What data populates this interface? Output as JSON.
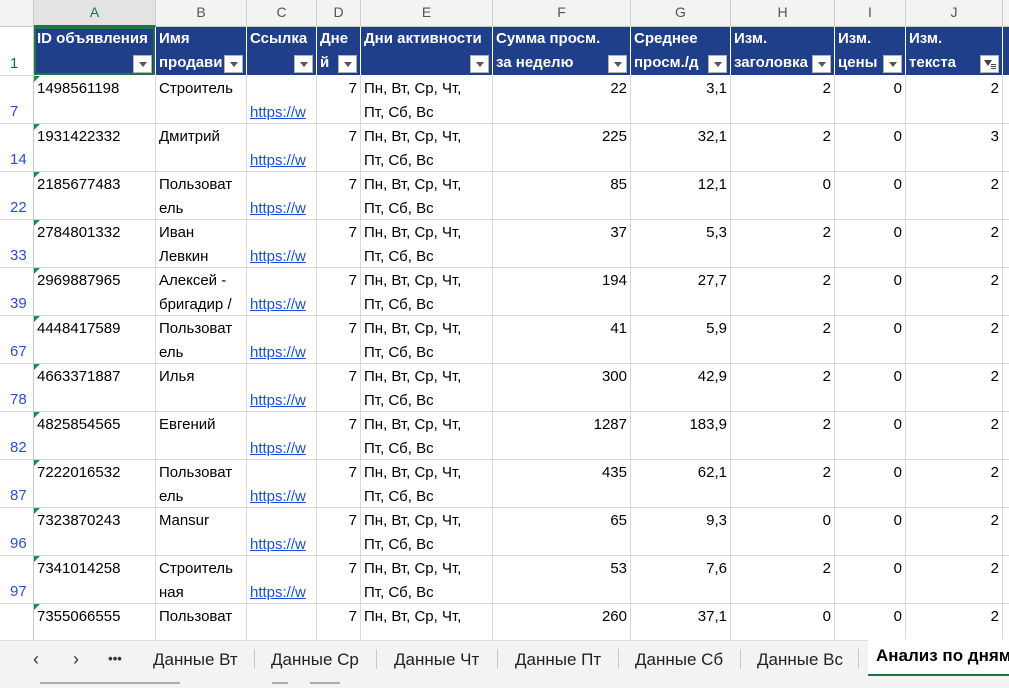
{
  "columns": [
    "A",
    "B",
    "C",
    "D",
    "E",
    "F",
    "G",
    "H",
    "I",
    "J"
  ],
  "header_row_num": "1",
  "headers": [
    {
      "l1": "ID объявления",
      "l2": ""
    },
    {
      "l1": "Имя",
      "l2": "продави"
    },
    {
      "l1": "Ссылка",
      "l2": ""
    },
    {
      "l1": "Дне",
      "l2": "й"
    },
    {
      "l1": "Дни активности",
      "l2": ""
    },
    {
      "l1": "Сумма просм.",
      "l2": "за неделю"
    },
    {
      "l1": "Среднее",
      "l2": "просм./д"
    },
    {
      "l1": "Изм.",
      "l2": "заголовка"
    },
    {
      "l1": "Изм.",
      "l2": "цены"
    },
    {
      "l1": "Изм.",
      "l2": "текста"
    }
  ],
  "rows": [
    {
      "num": "7",
      "id": "1498561198",
      "name1": "Строитель",
      "name2": "",
      "link": "https://w",
      "days": "7",
      "act1": "Пн, Вт, Ср, Чт,",
      "act2": "Пт, Сб, Вс",
      "sum": "22",
      "avg": "3,1",
      "h": "2",
      "i": "0",
      "j": "2"
    },
    {
      "num": "14",
      "id": "1931422332",
      "name1": "Дмитрий",
      "name2": "",
      "link": "https://w",
      "days": "7",
      "act1": "Пн, Вт, Ср, Чт,",
      "act2": "Пт, Сб, Вс",
      "sum": "225",
      "avg": "32,1",
      "h": "2",
      "i": "0",
      "j": "3"
    },
    {
      "num": "22",
      "id": "2185677483",
      "name1": "Пользоват",
      "name2": "ель",
      "link": "https://w",
      "days": "7",
      "act1": "Пн, Вт, Ср, Чт,",
      "act2": "Пт, Сб, Вс",
      "sum": "85",
      "avg": "12,1",
      "h": "0",
      "i": "0",
      "j": "2"
    },
    {
      "num": "33",
      "id": "2784801332",
      "name1": "Иван",
      "name2": "Левкин",
      "link": "https://w",
      "days": "7",
      "act1": "Пн, Вт, Ср, Чт,",
      "act2": "Пт, Сб, Вс",
      "sum": "37",
      "avg": "5,3",
      "h": "2",
      "i": "0",
      "j": "2"
    },
    {
      "num": "39",
      "id": "2969887965",
      "name1": "Алексей -",
      "name2": "бригадир /",
      "link": "https://w",
      "days": "7",
      "act1": "Пн, Вт, Ср, Чт,",
      "act2": "Пт, Сб, Вс",
      "sum": "194",
      "avg": "27,7",
      "h": "2",
      "i": "0",
      "j": "2"
    },
    {
      "num": "67",
      "id": "4448417589",
      "name1": "Пользоват",
      "name2": "ель",
      "link": "https://w",
      "days": "7",
      "act1": "Пн, Вт, Ср, Чт,",
      "act2": "Пт, Сб, Вс",
      "sum": "41",
      "avg": "5,9",
      "h": "2",
      "i": "0",
      "j": "2"
    },
    {
      "num": "78",
      "id": "4663371887",
      "name1": "Илья",
      "name2": "",
      "link": "https://w",
      "days": "7",
      "act1": "Пн, Вт, Ср, Чт,",
      "act2": "Пт, Сб, Вс",
      "sum": "300",
      "avg": "42,9",
      "h": "2",
      "i": "0",
      "j": "2"
    },
    {
      "num": "82",
      "id": "4825854565",
      "name1": "Евгений",
      "name2": "",
      "link": "https://w",
      "days": "7",
      "act1": "Пн, Вт, Ср, Чт,",
      "act2": "Пт, Сб, Вс",
      "sum": "1287",
      "avg": "183,9",
      "h": "2",
      "i": "0",
      "j": "2"
    },
    {
      "num": "87",
      "id": "7222016532",
      "name1": "Пользоват",
      "name2": "ель",
      "link": "https://w",
      "days": "7",
      "act1": "Пн, Вт, Ср, Чт,",
      "act2": "Пт, Сб, Вс",
      "sum": "435",
      "avg": "62,1",
      "h": "2",
      "i": "0",
      "j": "2"
    },
    {
      "num": "96",
      "id": "7323870243",
      "name1": "Mansur",
      "name2": "",
      "link": "https://w",
      "days": "7",
      "act1": "Пн, Вт, Ср, Чт,",
      "act2": "Пт, Сб, Вс",
      "sum": "65",
      "avg": "9,3",
      "h": "0",
      "i": "0",
      "j": "2"
    },
    {
      "num": "97",
      "id": "7341014258",
      "name1": "Строитель",
      "name2": "ная",
      "link": "https://w",
      "days": "7",
      "act1": "Пн, Вт, Ср, Чт,",
      "act2": "Пт, Сб, Вс",
      "sum": "53",
      "avg": "7,6",
      "h": "2",
      "i": "0",
      "j": "2"
    },
    {
      "num": "",
      "id": "7355066555",
      "name1": "Пользоват",
      "name2": "",
      "link": "",
      "days": "7",
      "act1": "Пн, Вт, Ср, Чт,",
      "act2": "",
      "sum": "260",
      "avg": "37,1",
      "h": "0",
      "i": "0",
      "j": "2"
    }
  ],
  "tabs": {
    "nav_prev": "‹",
    "nav_next": "›",
    "more": "•••",
    "items": [
      "Данные Вт",
      "Данные Ср",
      "Данные Чт",
      "Данные Пт",
      "Данные Сб",
      "Данные Вс"
    ],
    "active": "Анализ по дням"
  },
  "colors": {
    "header_bg": "#1f3f8a",
    "link": "#1a4fd6",
    "accent": "#217346"
  }
}
